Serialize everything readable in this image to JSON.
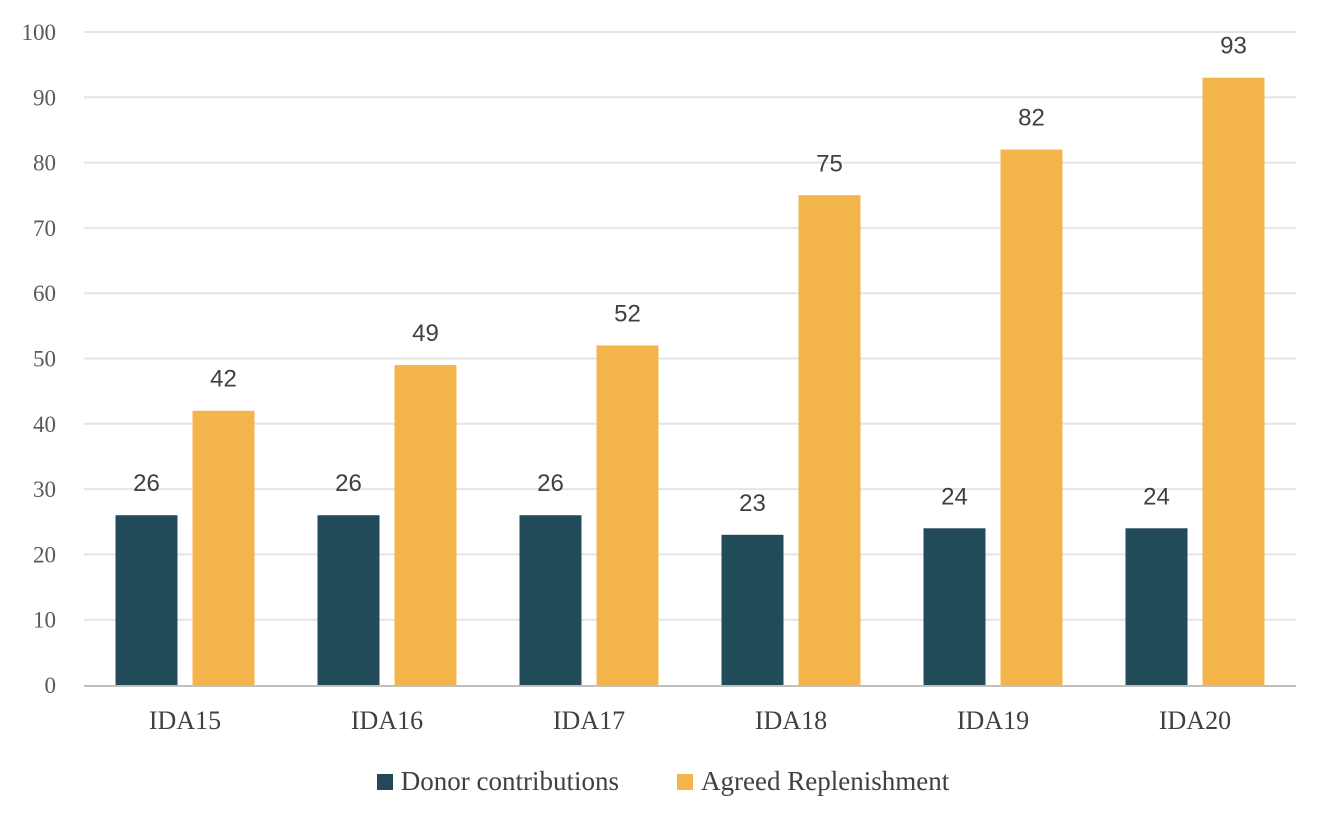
{
  "chart_data": {
    "type": "bar",
    "categories": [
      "IDA15",
      "IDA16",
      "IDA17",
      "IDA18",
      "IDA19",
      "IDA20"
    ],
    "series": [
      {
        "name": "Donor contributions",
        "values": [
          26,
          26,
          26,
          23,
          24,
          24
        ],
        "color": "#224b59"
      },
      {
        "name": "Agreed Replenishment",
        "values": [
          42,
          49,
          52,
          75,
          82,
          93
        ],
        "color": "#f4b44c"
      }
    ],
    "ylim": [
      0,
      100
    ],
    "yticks": [
      0,
      10,
      20,
      30,
      40,
      50,
      60,
      70,
      80,
      90,
      100
    ],
    "grid": true,
    "gridColor": "#e4e4e4",
    "axisColor": "#bfbfbf",
    "legend_position": "bottom",
    "data_labels": true
  }
}
